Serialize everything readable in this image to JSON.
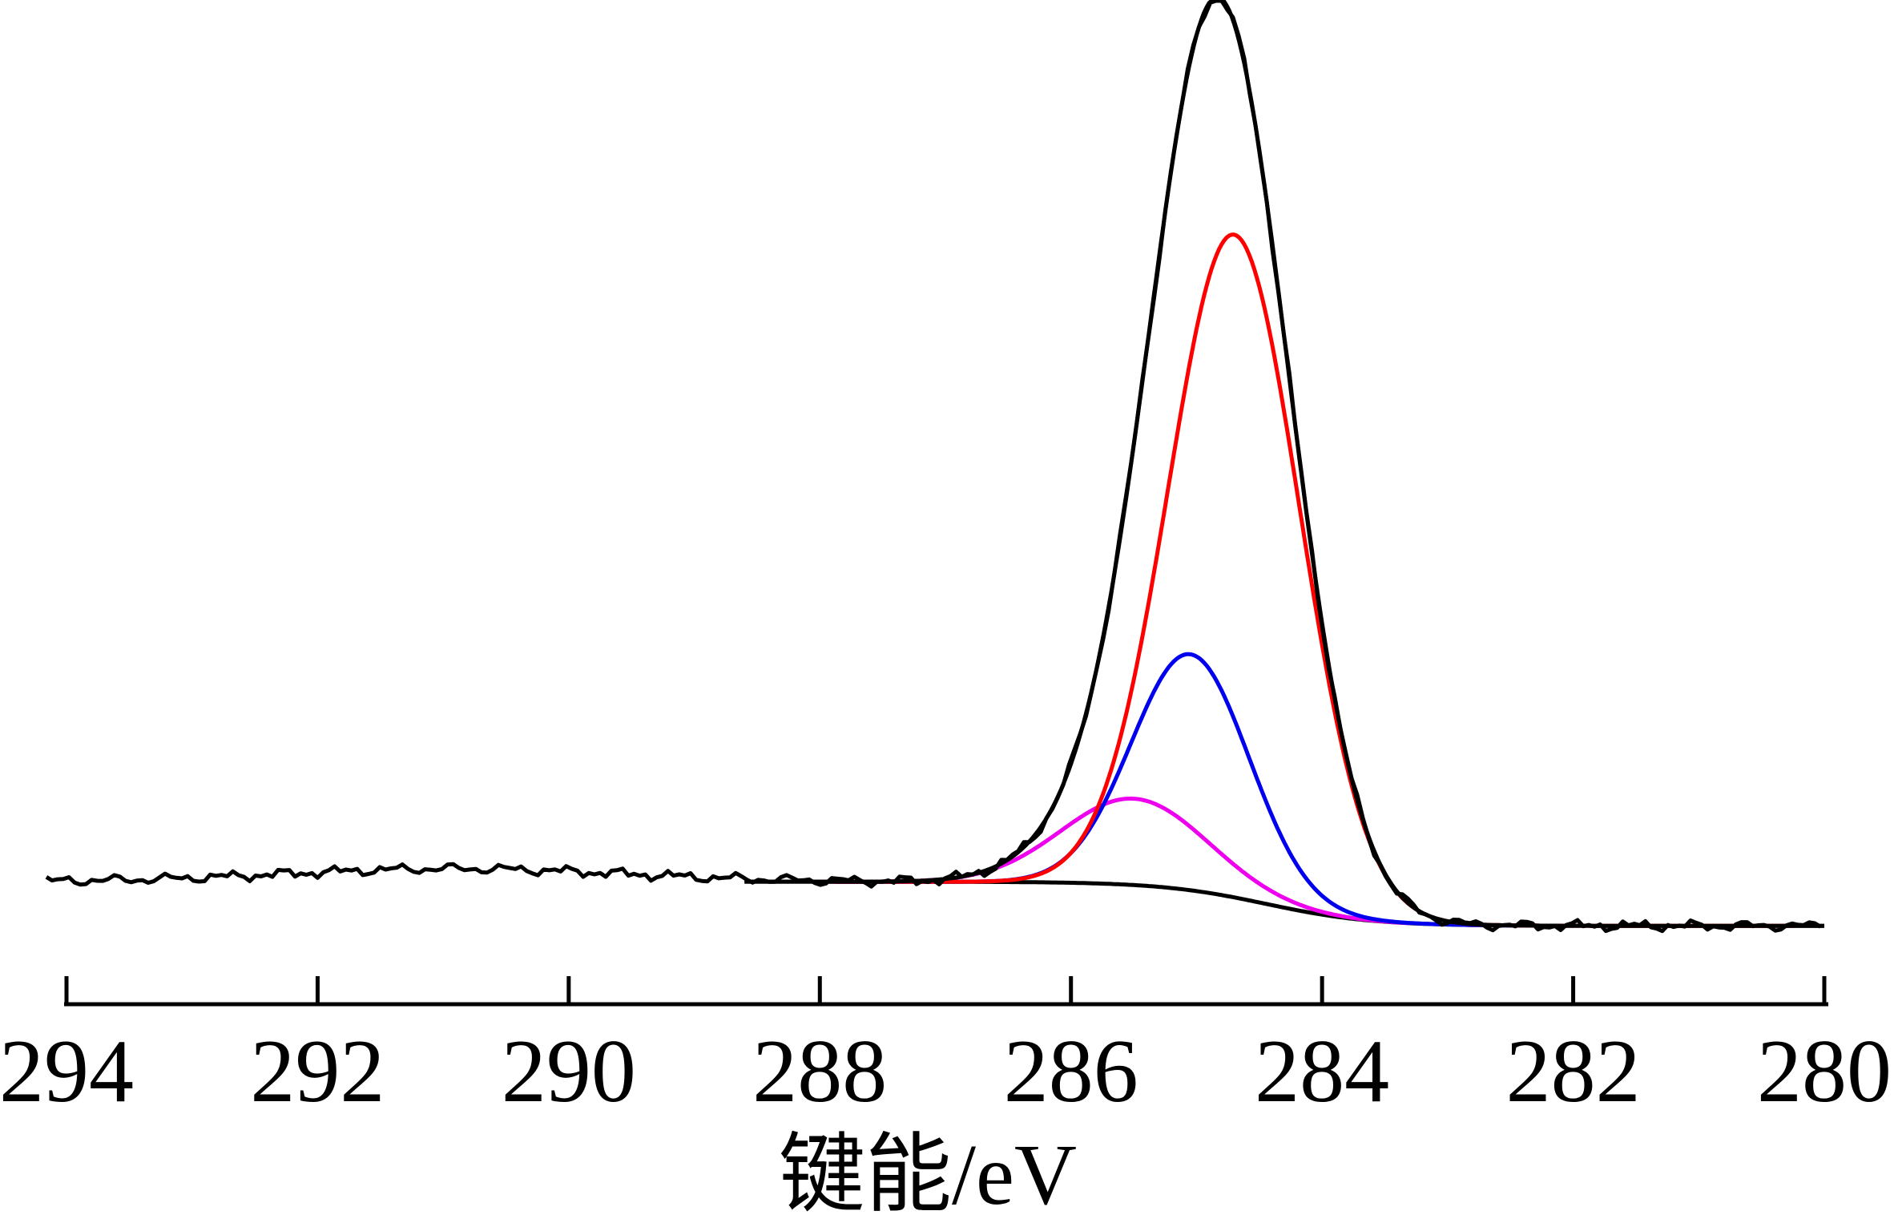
{
  "figure": {
    "description": "XPS C 1s spectrum with fitted peak components",
    "background_color": "#ffffff",
    "line_color_black": "#000000"
  },
  "chart_data": {
    "type": "line",
    "title": "",
    "xlabel": "键能/eV",
    "ylabel": "",
    "x_axis": {
      "ticks": [
        294,
        292,
        290,
        288,
        286,
        284,
        282,
        280
      ],
      "range_eV": [
        294.2,
        279.9
      ],
      "reversed": true,
      "grid": false
    },
    "y_axis": {
      "visible": false,
      "units": "arbitrary intensity, normalized 0-1 of plot height"
    },
    "legend": "none",
    "background_model": {
      "left_level": 0.122,
      "right_level": 0.078,
      "step_center_eV": 284.45,
      "step_width_eV": 0.42
    },
    "measured_hump": {
      "amplitude": 0.013,
      "center_eV": 290.9,
      "width_eV": 1.9
    },
    "noise_terms": [
      [
        0.0028,
        14.0,
        0.0
      ],
      [
        0.0022,
        33.0,
        1.3
      ],
      [
        0.0015,
        71.0,
        0.7
      ]
    ],
    "series": [
      {
        "id": "background",
        "label": "background line",
        "kind": "background",
        "color": "#000000",
        "range_eV": [
          288.6,
          280.0
        ]
      },
      {
        "id": "peak_magenta",
        "label": "fitted component ~285.5 eV",
        "kind": "peak",
        "color": "#ee00ee",
        "center_eV": 285.5,
        "height": 0.086,
        "fwhm_eV": 1.35,
        "range_eV": [
          288.0,
          283.3
        ]
      },
      {
        "id": "peak_blue",
        "label": "fitted component ~285.0 eV",
        "kind": "peak",
        "color": "#0000ee",
        "center_eV": 285.05,
        "height": 0.235,
        "fwhm_eV": 1.1,
        "range_eV": [
          288.0,
          281.95
        ]
      },
      {
        "id": "peak_red",
        "label": "fitted component ~284.7 eV",
        "kind": "peak",
        "color": "#ff0000",
        "center_eV": 284.7,
        "height": 0.66,
        "fwhm_eV": 1.23,
        "range_eV": [
          288.0,
          280.25
        ]
      },
      {
        "id": "envelope",
        "label": "fit envelope",
        "kind": "envelope",
        "color": "#000000",
        "range_eV": [
          288.6,
          280.0
        ]
      },
      {
        "id": "measured",
        "label": "measured spectrum",
        "kind": "measured",
        "color": "#000000",
        "range_eV": [
          294.16,
          280.0
        ]
      }
    ]
  }
}
